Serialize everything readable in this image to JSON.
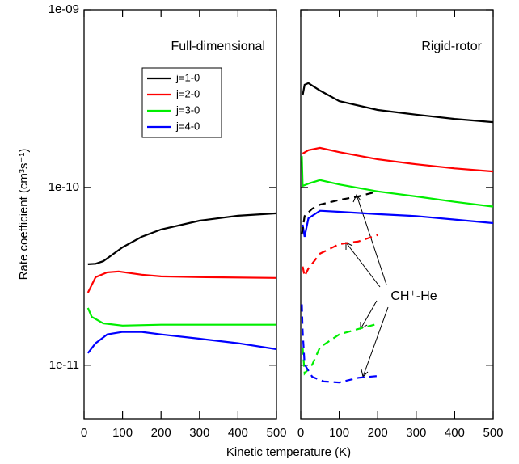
{
  "xlabel": "Kinetic temperature (K)",
  "ylabel": "Rate coefficient (cm³s⁻¹)",
  "annotation": "CH⁺-He",
  "chart_data": [
    {
      "type": "line",
      "title": "Full-dimensional",
      "log_y": true,
      "legend": true,
      "xlim": [
        0,
        500
      ],
      "xticks": [
        0,
        100,
        200,
        300,
        400,
        500
      ],
      "ylim": [
        5e-12,
        1e-09
      ],
      "yticks": [
        {
          "value": 1e-09,
          "label": "1e-09"
        },
        {
          "value": 1e-10,
          "label": "1e-10"
        },
        {
          "value": 1e-11,
          "label": "1e-11"
        }
      ],
      "series": [
        {
          "name": "j=1-0",
          "color": "#000000",
          "x": [
            10,
            30,
            50,
            100,
            150,
            200,
            300,
            400,
            500
          ],
          "values": [
            3.7e-11,
            3.72e-11,
            3.85e-11,
            4.61e-11,
            5.28e-11,
            5.8e-11,
            6.5e-11,
            6.93e-11,
            7.15e-11
          ]
        },
        {
          "name": "j=2-0",
          "color": "#ff0000",
          "x": [
            10,
            30,
            60,
            90,
            150,
            200,
            300,
            500
          ],
          "values": [
            2.56e-11,
            3.13e-11,
            3.33e-11,
            3.37e-11,
            3.23e-11,
            3.16e-11,
            3.13e-11,
            3.1e-11
          ]
        },
        {
          "name": "j=3-0",
          "color": "#00ee00",
          "x": [
            10,
            20,
            50,
            100,
            200,
            300,
            500
          ],
          "values": [
            2.1e-11,
            1.87e-11,
            1.72e-11,
            1.67e-11,
            1.69e-11,
            1.69e-11,
            1.69e-11
          ]
        },
        {
          "name": "j=4-0",
          "color": "#0000ff",
          "x": [
            10,
            30,
            60,
            100,
            150,
            200,
            300,
            400,
            500
          ],
          "values": [
            1.17e-11,
            1.33e-11,
            1.49e-11,
            1.54e-11,
            1.54e-11,
            1.49e-11,
            1.41e-11,
            1.33e-11,
            1.23e-11
          ]
        }
      ]
    },
    {
      "type": "line",
      "title": "Rigid-rotor",
      "log_y": true,
      "show_ytick_labels": false,
      "xlim": [
        0,
        500
      ],
      "xticks": [
        0,
        100,
        200,
        300,
        400,
        500
      ],
      "ylim": [
        5e-12,
        1e-09
      ],
      "yticks": [
        1e-09,
        1e-10,
        1e-11
      ],
      "series": [
        {
          "color": "#000000",
          "x": [
            5,
            10,
            20,
            50,
            100,
            200,
            300,
            400,
            500
          ],
          "values": [
            3.3e-10,
            3.78e-10,
            3.86e-10,
            3.51e-10,
            3.06e-10,
            2.73e-10,
            2.57e-10,
            2.43e-10,
            2.33e-10
          ]
        },
        {
          "color": "#ff0000",
          "x": [
            5,
            20,
            50,
            100,
            200,
            300,
            400,
            500
          ],
          "values": [
            1.55e-10,
            1.62e-10,
            1.67e-10,
            1.58e-10,
            1.44e-10,
            1.35e-10,
            1.28e-10,
            1.23e-10
          ]
        },
        {
          "color": "#00ee00",
          "x": [
            3,
            5,
            20,
            50,
            100,
            200,
            300,
            400,
            500
          ],
          "values": [
            1.5e-10,
            1.02e-10,
            1.05e-10,
            1.1e-10,
            1.04e-10,
            9.5e-11,
            8.9e-11,
            8.3e-11,
            7.8e-11
          ]
        },
        {
          "color": "#0000ff",
          "x": [
            5,
            10,
            20,
            50,
            100,
            200,
            300,
            400,
            500
          ],
          "values": [
            6.18e-11,
            5.28e-11,
            6.7e-11,
            7.4e-11,
            7.3e-11,
            7.08e-11,
            6.9e-11,
            6.6e-11,
            6.3e-11
          ]
        },
        {
          "color": "#000000",
          "dash": true,
          "x": [
            3,
            10,
            30,
            50,
            100,
            150,
            200
          ],
          "values": [
            5.45e-11,
            6.9e-11,
            7.6e-11,
            8e-11,
            8.5e-11,
            8.9e-11,
            9.5e-11
          ]
        },
        {
          "color": "#ff0000",
          "dash": true,
          "x": [
            5,
            10,
            20,
            50,
            100,
            150,
            200
          ],
          "values": [
            3.59e-11,
            3.17e-11,
            3.5e-11,
            4.24e-11,
            4.8e-11,
            4.97e-11,
            5.4e-11
          ]
        },
        {
          "color": "#00ee00",
          "dash": true,
          "x": [
            5,
            10,
            30,
            50,
            100,
            150,
            200
          ],
          "values": [
            1.26e-11,
            9e-12,
            1.01e-11,
            1.26e-11,
            1.49e-11,
            1.6e-11,
            1.71e-11
          ]
        },
        {
          "color": "#0000ff",
          "dash": true,
          "x": [
            3,
            5,
            10,
            30,
            60,
            100,
            150,
            200
          ],
          "values": [
            2.2e-11,
            1.55e-11,
            1.01e-11,
            8.6e-12,
            8.1e-12,
            8e-12,
            8.5e-12,
            8.7e-12
          ]
        }
      ]
    }
  ]
}
